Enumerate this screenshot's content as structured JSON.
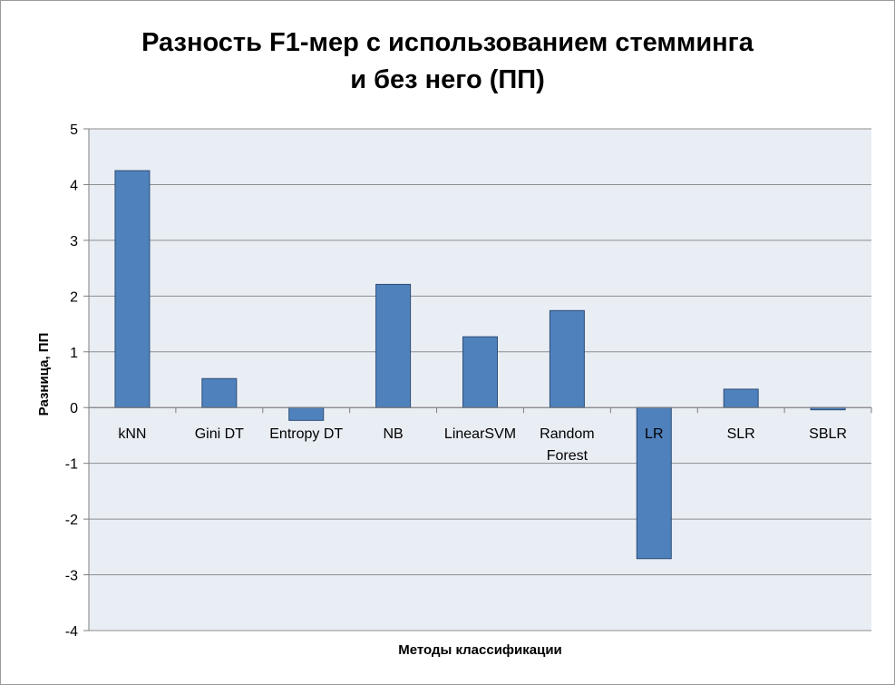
{
  "chart_data": {
    "type": "bar",
    "title_line1": "Разность F1-мер с использованием стемминга",
    "title_line2": "и без него (ПП)",
    "xlabel": "Методы классификации",
    "ylabel": "Разница, ПП",
    "ylim": [
      -4,
      5
    ],
    "yticks": [
      5,
      4,
      3,
      2,
      1,
      0,
      -1,
      -2,
      -3,
      -4
    ],
    "categories": [
      [
        "kNN"
      ],
      [
        "Gini DT"
      ],
      [
        "Entropy DT"
      ],
      [
        "NB"
      ],
      [
        "LinearSVM"
      ],
      [
        "Random",
        "Forest"
      ],
      [
        "LR"
      ],
      [
        "SLR"
      ],
      [
        "SBLR"
      ]
    ],
    "values": [
      4.25,
      0.52,
      -0.23,
      2.21,
      1.27,
      1.74,
      -2.71,
      0.33,
      -0.04
    ],
    "grid": true,
    "legend": "none",
    "colors": {
      "bar_fill": "#4f81bd",
      "bar_stroke": "#2c4d75",
      "plot_bg": "#e9edf4",
      "grid": "#8e8e8e",
      "axis": "#7f7f7f"
    }
  }
}
